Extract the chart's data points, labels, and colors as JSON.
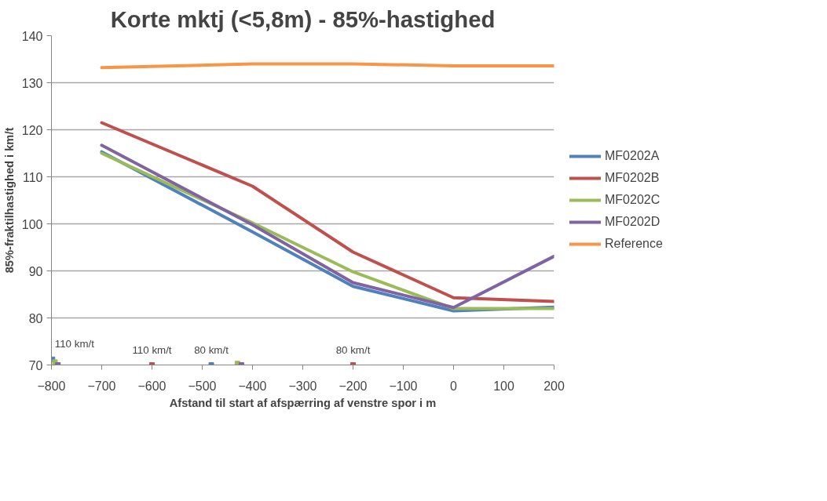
{
  "chart_data": {
    "type": "line",
    "title": "Korte mktj (<5,8m) - 85%-hastighed",
    "xlabel": "Afstand til start af afspærring af venstre spor i m",
    "ylabel": "85%-fraktilhastighed i km/t",
    "x": [
      -700,
      -400,
      -200,
      0,
      200
    ],
    "xlim": [
      -800,
      200
    ],
    "xticks": [
      -800,
      -700,
      -600,
      -500,
      -400,
      -300,
      -200,
      -100,
      0,
      100,
      200
    ],
    "ylim": [
      70,
      140
    ],
    "yticks": [
      70,
      80,
      90,
      100,
      110,
      120,
      130,
      140
    ],
    "grid": "y",
    "legend": "right",
    "line_style": "solid",
    "marker": "none",
    "series": [
      {
        "name": "MF0202A",
        "color": "#4f81bd",
        "values": [
          115.3,
          98.3,
          86.7,
          81.5,
          82.3
        ]
      },
      {
        "name": "MF0202B",
        "color": "#c0504d",
        "values": [
          121.5,
          108,
          94,
          84.3,
          83.5
        ]
      },
      {
        "name": "MF0202C",
        "color": "#9bbb59",
        "values": [
          115,
          100.2,
          89.8,
          82,
          82
        ]
      },
      {
        "name": "MF0202D",
        "color": "#8064a2",
        "values": [
          116.7,
          99.8,
          87.5,
          82.2,
          93.1
        ]
      },
      {
        "name": "Reference",
        "color": "#f79646",
        "values": [
          133.2,
          134,
          134,
          133.6,
          133.6
        ]
      },
      {
        "type": "scatter",
        "marker": "square",
        "color": "#4f81bd",
        "x": [
          -798,
          -482
        ],
        "values": [
          71.2,
          70
        ]
      },
      {
        "type": "scatter",
        "marker": "square",
        "color": "#c0504d",
        "x": [
          -600,
          -200
        ],
        "values": [
          70,
          70
        ]
      },
      {
        "type": "scatter",
        "marker": "square",
        "color": "#9bbb59",
        "x": [
          -793,
          -430
        ],
        "values": [
          70.6,
          70.3
        ]
      },
      {
        "type": "scatter",
        "marker": "square",
        "color": "#8064a2",
        "x": [
          -787,
          -422
        ],
        "values": [
          70,
          70
        ]
      }
    ],
    "annotations": [
      {
        "text": "110 km/t",
        "x": -798,
        "y": 71.2
      },
      {
        "text": "110 km/t",
        "x": -600,
        "y": 70
      },
      {
        "text": "80 km/t",
        "x": -482,
        "y": 70
      },
      {
        "text": "80 km/t",
        "x": -200,
        "y": 70
      }
    ]
  }
}
